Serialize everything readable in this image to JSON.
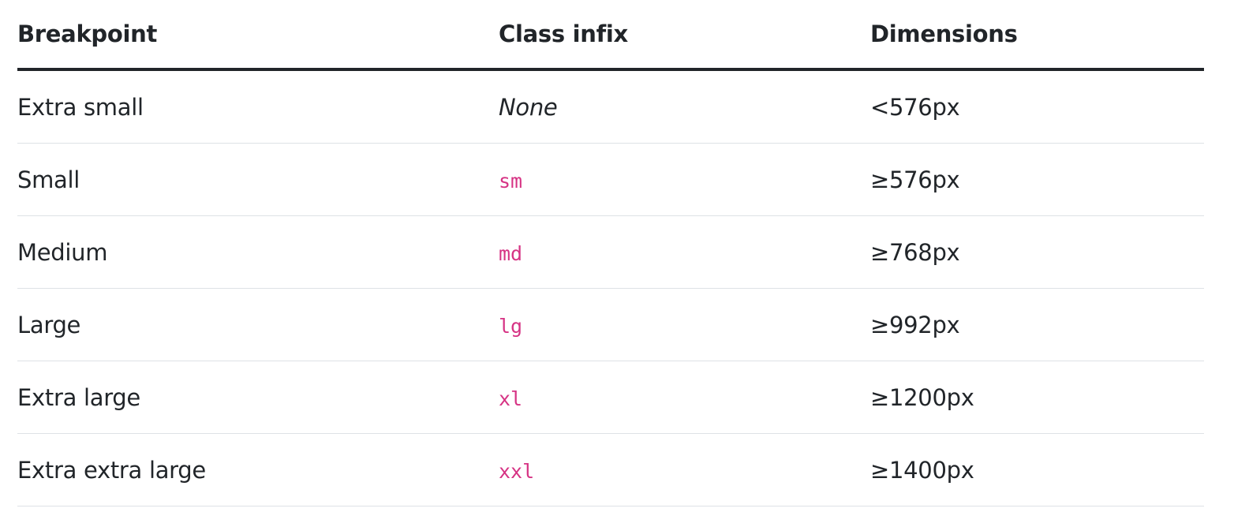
{
  "table": {
    "headers": {
      "breakpoint": "Breakpoint",
      "class_infix": "Class infix",
      "dimensions": "Dimensions"
    },
    "rows": [
      {
        "breakpoint": "Extra small",
        "class_infix": "None",
        "dimensions": "<576px"
      },
      {
        "breakpoint": "Small",
        "class_infix": "sm",
        "dimensions": "≥576px"
      },
      {
        "breakpoint": "Medium",
        "class_infix": "md",
        "dimensions": "≥768px"
      },
      {
        "breakpoint": "Large",
        "class_infix": "lg",
        "dimensions": "≥992px"
      },
      {
        "breakpoint": "Extra large",
        "class_infix": "xl",
        "dimensions": "≥1200px"
      },
      {
        "breakpoint": "Extra extra large",
        "class_infix": "xxl",
        "dimensions": "≥1400px"
      }
    ]
  },
  "colors": {
    "text": "#212529",
    "code": "#d63384",
    "row_border": "#dee2e6",
    "header_border": "#212529"
  }
}
